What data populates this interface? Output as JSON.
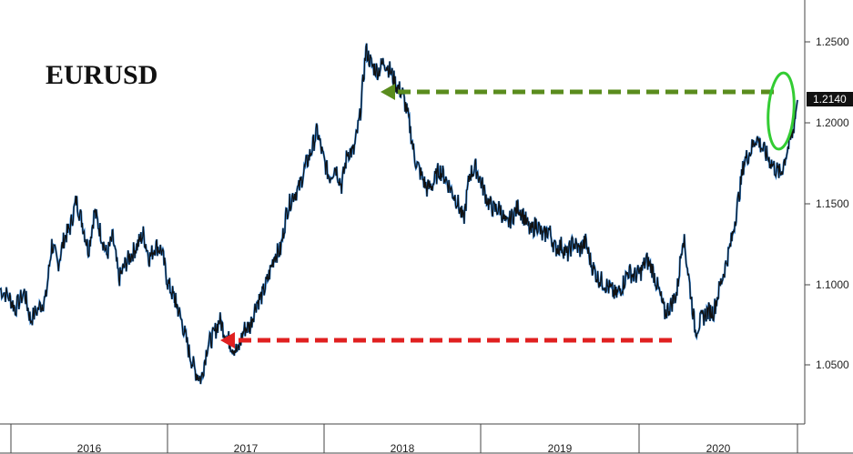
{
  "chart_data": {
    "type": "line",
    "title": "EURUSD",
    "xlabel": "",
    "ylabel": "",
    "x_tick_labels": [
      "2016",
      "2017",
      "2018",
      "2019",
      "2020"
    ],
    "y_tick_labels": [
      "1.2500",
      "1.2000",
      "1.1500",
      "1.1000",
      "1.0500"
    ],
    "y_ticks": [
      1.25,
      1.2,
      1.15,
      1.1,
      1.05
    ],
    "ylim": [
      1.02,
      1.27
    ],
    "xlim": [
      2015.72,
      2020.95
    ],
    "grid": false,
    "last_value_label": "1.2140",
    "series": [
      {
        "values_x": [
          2015.72,
          2015.78,
          2015.82,
          2015.88,
          2015.92,
          2015.98,
          2016.02,
          2016.06,
          2016.1,
          2016.14,
          2016.18,
          2016.22,
          2016.26,
          2016.3,
          2016.34,
          2016.38,
          2016.42,
          2016.46,
          2016.5,
          2016.54,
          2016.58,
          2016.62,
          2016.66,
          2016.7,
          2016.74,
          2016.78,
          2016.82,
          2016.86,
          2016.88,
          2016.92,
          2016.96,
          2017.0,
          2017.04,
          2017.08,
          2017.12,
          2017.16,
          2017.2,
          2017.24,
          2017.28,
          2017.32,
          2017.36,
          2017.4,
          2017.44,
          2017.48,
          2017.52,
          2017.56,
          2017.6,
          2017.64,
          2017.68,
          2017.72,
          2017.76,
          2017.8,
          2017.84,
          2017.88,
          2017.92,
          2017.96,
          2018.0,
          2018.04,
          2018.08,
          2018.12,
          2018.16,
          2018.2,
          2018.24,
          2018.28,
          2018.32,
          2018.36,
          2018.4,
          2018.44,
          2018.48,
          2018.52,
          2018.56,
          2018.6,
          2018.64,
          2018.68,
          2018.72,
          2018.76,
          2018.8,
          2018.84,
          2018.88,
          2018.92,
          2018.96,
          2019.0,
          2019.04,
          2019.08,
          2019.12,
          2019.16,
          2019.2,
          2019.24,
          2019.28,
          2019.32,
          2019.36,
          2019.4,
          2019.44,
          2019.48,
          2019.52,
          2019.56,
          2019.6,
          2019.64,
          2019.68,
          2019.72,
          2019.76,
          2019.8,
          2019.84,
          2019.88,
          2019.92,
          2019.96,
          2020.0,
          2020.04,
          2020.08,
          2020.12,
          2020.16,
          2020.2,
          2020.24,
          2020.28,
          2020.32,
          2020.36,
          2020.4,
          2020.44,
          2020.48,
          2020.52,
          2020.56,
          2020.6,
          2020.64,
          2020.68,
          2020.72,
          2020.76,
          2020.8,
          2020.84,
          2020.88,
          2020.92,
          2020.95
        ],
        "values_y": [
          1.097,
          1.092,
          1.085,
          1.095,
          1.078,
          1.086,
          1.091,
          1.125,
          1.112,
          1.128,
          1.135,
          1.152,
          1.138,
          1.121,
          1.145,
          1.132,
          1.118,
          1.129,
          1.103,
          1.112,
          1.118,
          1.124,
          1.131,
          1.116,
          1.124,
          1.121,
          1.101,
          1.092,
          1.087,
          1.074,
          1.058,
          1.046,
          1.041,
          1.062,
          1.068,
          1.078,
          1.069,
          1.062,
          1.058,
          1.072,
          1.074,
          1.088,
          1.093,
          1.104,
          1.118,
          1.121,
          1.145,
          1.155,
          1.159,
          1.172,
          1.182,
          1.195,
          1.178,
          1.166,
          1.173,
          1.161,
          1.182,
          1.182,
          1.203,
          1.245,
          1.235,
          1.232,
          1.238,
          1.232,
          1.223,
          1.218,
          1.202,
          1.178,
          1.168,
          1.159,
          1.162,
          1.171,
          1.166,
          1.158,
          1.151,
          1.139,
          1.168,
          1.172,
          1.162,
          1.151,
          1.146,
          1.147,
          1.136,
          1.142,
          1.148,
          1.141,
          1.132,
          1.138,
          1.129,
          1.134,
          1.122,
          1.124,
          1.118,
          1.126,
          1.121,
          1.126,
          1.112,
          1.104,
          1.101,
          1.097,
          1.093,
          1.099,
          1.108,
          1.105,
          1.107,
          1.115,
          1.109,
          1.096,
          1.082,
          1.087,
          1.095,
          1.131,
          1.102,
          1.071,
          1.078,
          1.083,
          1.083,
          1.098,
          1.112,
          1.128,
          1.151,
          1.176,
          1.182,
          1.191,
          1.184,
          1.178,
          1.172,
          1.168,
          1.182,
          1.194,
          1.214
        ]
      }
    ]
  },
  "annotations": {
    "green_arrow_color": "#5a8c1e",
    "red_arrow_color": "#e02020",
    "ellipse_color": "#33cc33",
    "label_bg_color": "#111111",
    "line_color": "#111111",
    "line_highlight_color": "#2a7fd4"
  }
}
